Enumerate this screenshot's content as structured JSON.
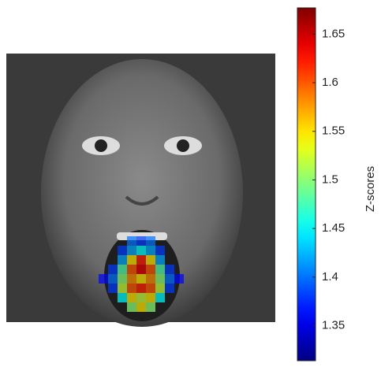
{
  "chart_data": {
    "type": "colorbar",
    "colorbar_label": "Z-scores",
    "colormap": "jet",
    "ylim": [
      1.314,
      1.677
    ],
    "yticks": [
      1.35,
      1.4,
      1.45,
      1.5,
      1.55,
      1.6,
      1.65
    ],
    "heatmap": {
      "values": [
        [
          null,
          null,
          null,
          1.4,
          1.38,
          1.4,
          null,
          null,
          null
        ],
        [
          null,
          null,
          1.38,
          1.42,
          1.45,
          1.42,
          1.38,
          null,
          null
        ],
        [
          null,
          null,
          1.42,
          1.55,
          1.62,
          1.55,
          1.42,
          null,
          null
        ],
        [
          null,
          1.38,
          1.48,
          1.6,
          1.64,
          1.6,
          1.48,
          1.38,
          null
        ],
        [
          1.36,
          1.4,
          1.5,
          1.58,
          1.55,
          1.58,
          1.5,
          1.4,
          1.36
        ],
        [
          null,
          1.38,
          1.52,
          1.6,
          1.62,
          1.6,
          1.52,
          1.38,
          null
        ],
        [
          null,
          null,
          1.45,
          1.55,
          1.52,
          1.55,
          1.45,
          null,
          null
        ],
        [
          null,
          null,
          null,
          1.5,
          1.55,
          1.5,
          null,
          null,
          null
        ]
      ]
    }
  }
}
